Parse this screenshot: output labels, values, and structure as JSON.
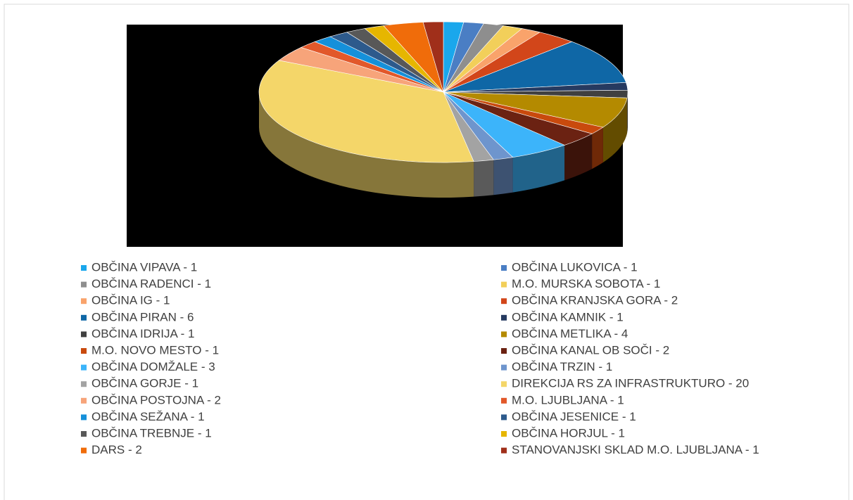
{
  "chart_data": {
    "type": "pie3d",
    "categories": [
      "OBČINA VIPAVA - 1",
      "OBČINA LUKOVICA - 1",
      "OBČINA RADENCI - 1",
      "M.O. MURSKA SOBOTA - 1",
      "OBČINA IG - 1",
      "OBČINA KRANJSKA GORA - 2",
      "OBČINA PIRAN - 6",
      "OBČINA KAMNIK - 1",
      "OBČINA IDRIJA - 1",
      "OBČINA METLIKA - 4",
      "M.O. NOVO MESTO - 1",
      "OBČINA KANAL OB SOČI - 2",
      "OBČINA DOMŽALE - 3",
      "OBČINA TRZIN - 1",
      "OBČINA GORJE - 1",
      "DIREKCIJA RS ZA INFRASTRUKTURO - 20",
      "OBČINA POSTOJNA - 2",
      "M.O. LJUBLJANA - 1",
      "OBČINA SEŽANA - 1",
      "OBČINA JESENICE - 1",
      "OBČINA TREBNJE - 1",
      "OBČINA HORJUL - 1",
      "DARS - 2",
      "STANOVANJSKI SKLAD M.O. LJUBLJANA - 1"
    ],
    "values": [
      1,
      1,
      1,
      1,
      1,
      2,
      6,
      1,
      1,
      4,
      1,
      2,
      3,
      1,
      1,
      20,
      2,
      1,
      1,
      1,
      1,
      1,
      2,
      1
    ],
    "colors": [
      "#1aa7ec",
      "#4a7ec4",
      "#8e8e8e",
      "#f2cf5a",
      "#f9a36b",
      "#d2461a",
      "#0f67a6",
      "#263a60",
      "#404040",
      "#b48a00",
      "#c94a0d",
      "#6b2212",
      "#3cb4fa",
      "#6e95cd",
      "#a3a3a3",
      "#f4d669",
      "#f7a47a",
      "#e2582a",
      "#1590da",
      "#2d5a8c",
      "#585858",
      "#e6b600",
      "#f06c0a",
      "#a02f1a"
    ],
    "legend": "bottom"
  }
}
